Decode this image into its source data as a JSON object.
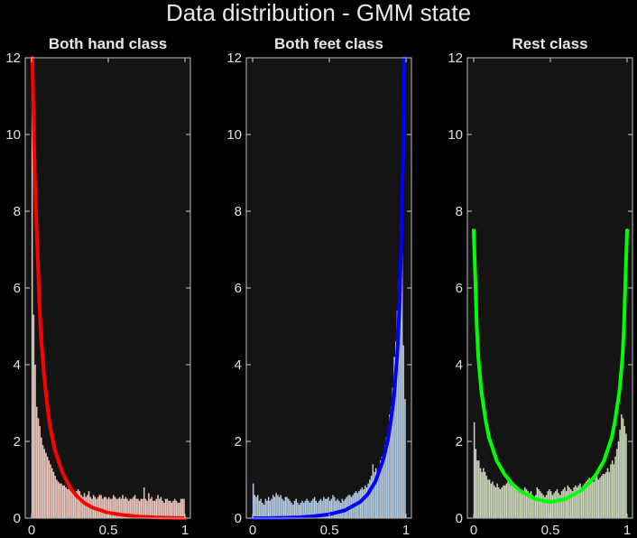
{
  "figure": {
    "title": "Data distribution - GMM state"
  },
  "chart_data": [
    {
      "type": "bar+line",
      "title": "Both hand class",
      "xlim": [
        0,
        1
      ],
      "ylim": [
        0,
        12
      ],
      "xticks": [
        0,
        0.5,
        1
      ],
      "xtick_labels": [
        "0",
        "0.5",
        "1"
      ],
      "yticks": [
        0,
        2,
        4,
        6,
        8,
        10,
        12
      ],
      "ytick_labels": [
        "0",
        "2",
        "4",
        "6",
        "8",
        "10",
        "12"
      ],
      "bar_color": "#f2c4b6",
      "line_color": "#ff0000",
      "bins": 100,
      "histogram": [
        12.0,
        5.3,
        4.0,
        2.9,
        2.6,
        2.4,
        2.1,
        1.9,
        1.8,
        1.7,
        1.6,
        1.5,
        1.4,
        1.3,
        1.2,
        1.1,
        1.0,
        0.95,
        0.9,
        0.9,
        0.85,
        0.85,
        0.8,
        0.75,
        0.8,
        0.75,
        0.7,
        0.7,
        0.65,
        0.7,
        0.75,
        0.7,
        0.6,
        0.55,
        0.65,
        0.55,
        0.6,
        0.7,
        0.55,
        0.5,
        0.6,
        0.55,
        0.5,
        0.55,
        0.6,
        0.6,
        0.5,
        0.55,
        0.55,
        0.5,
        0.55,
        0.5,
        0.5,
        0.6,
        0.55,
        0.5,
        0.5,
        0.55,
        0.5,
        0.6,
        0.5,
        0.55,
        0.5,
        0.45,
        0.5,
        0.5,
        0.55,
        0.6,
        0.5,
        0.5,
        0.45,
        0.5,
        0.5,
        0.8,
        0.5,
        0.45,
        0.65,
        0.5,
        0.55,
        0.45,
        0.45,
        0.5,
        0.6,
        0.5,
        0.55,
        0.45,
        0.4,
        0.5,
        0.5,
        0.45,
        0.45,
        0.4,
        0.45,
        0.5,
        0.45,
        0.4,
        0.4,
        0.5,
        0.5,
        0.5
      ],
      "curve": {
        "x": [
          0.005,
          0.01,
          0.02,
          0.03,
          0.04,
          0.05,
          0.06,
          0.08,
          0.1,
          0.12,
          0.15,
          0.2,
          0.25,
          0.3,
          0.35,
          0.4,
          0.5,
          0.6,
          0.7,
          0.8,
          0.9,
          1.0
        ],
        "y": [
          12.0,
          11.0,
          9.1,
          7.8,
          6.8,
          5.7,
          4.8,
          3.8,
          3.0,
          2.4,
          1.8,
          1.2,
          0.8,
          0.55,
          0.38,
          0.27,
          0.14,
          0.08,
          0.04,
          0.02,
          0.01,
          0.0
        ]
      }
    },
    {
      "type": "bar+line",
      "title": "Both feet class",
      "xlim": [
        0,
        1
      ],
      "ylim": [
        0,
        12
      ],
      "xticks": [
        0,
        0.5,
        1
      ],
      "xtick_labels": [
        "0",
        "0.5",
        "1"
      ],
      "yticks": [
        0,
        2,
        4,
        6,
        8,
        10,
        12
      ],
      "ytick_labels": [
        "0",
        "2",
        "4",
        "6",
        "8",
        "10",
        "12"
      ],
      "bar_color": "#aac8e4",
      "line_color": "#0000ff",
      "bins": 100,
      "histogram": [
        0.9,
        0.6,
        0.55,
        0.6,
        0.45,
        0.5,
        0.4,
        0.35,
        0.5,
        0.45,
        0.55,
        0.45,
        0.5,
        0.6,
        0.55,
        0.65,
        0.6,
        0.55,
        0.6,
        0.5,
        0.45,
        0.55,
        0.55,
        0.5,
        0.45,
        0.4,
        0.35,
        0.45,
        0.5,
        0.4,
        0.35,
        0.4,
        0.45,
        0.4,
        0.45,
        0.5,
        0.45,
        0.4,
        0.45,
        0.5,
        0.55,
        0.45,
        0.4,
        0.45,
        0.5,
        0.45,
        0.55,
        0.5,
        0.5,
        0.55,
        0.45,
        0.5,
        0.6,
        0.55,
        0.45,
        0.5,
        0.45,
        0.4,
        0.5,
        0.45,
        0.5,
        0.55,
        0.6,
        0.6,
        0.55,
        0.6,
        0.65,
        0.7,
        0.65,
        0.7,
        0.75,
        0.8,
        0.75,
        0.85,
        0.8,
        0.9,
        1.0,
        1.1,
        1.4,
        1.2,
        1.3,
        1.0,
        1.3,
        1.5,
        1.6,
        1.7,
        1.9,
        2.1,
        2.3,
        2.7,
        2.9,
        3.4,
        4.2,
        4.6,
        5.4,
        6.2,
        7.6,
        7.9,
        4.5,
        3.1
      ],
      "curve": {
        "x": [
          0.0,
          0.1,
          0.2,
          0.3,
          0.4,
          0.5,
          0.6,
          0.7,
          0.75,
          0.8,
          0.85,
          0.88,
          0.9,
          0.92,
          0.94,
          0.95,
          0.96,
          0.97,
          0.98,
          0.99
        ],
        "y": [
          0.0,
          0.0,
          0.01,
          0.02,
          0.05,
          0.1,
          0.2,
          0.42,
          0.62,
          0.95,
          1.5,
          2.0,
          2.5,
          3.1,
          4.1,
          4.8,
          5.9,
          7.3,
          9.3,
          12.0
        ]
      }
    },
    {
      "type": "bar+line",
      "title": "Rest class",
      "xlim": [
        0,
        1
      ],
      "ylim": [
        0,
        12
      ],
      "xticks": [
        0,
        0.5,
        1
      ],
      "xtick_labels": [
        "0",
        "0.5",
        "1"
      ],
      "yticks": [
        0,
        2,
        4,
        6,
        8,
        10,
        12
      ],
      "ytick_labels": [
        "0",
        "2",
        "4",
        "6",
        "8",
        "10",
        "12"
      ],
      "bar_color": "#c9d8b3",
      "line_color": "#00ff00",
      "bins": 100,
      "histogram": [
        2.5,
        1.8,
        1.5,
        1.5,
        1.3,
        1.2,
        1.3,
        1.2,
        1.1,
        1.0,
        1.0,
        0.9,
        0.95,
        0.85,
        0.8,
        0.9,
        0.8,
        0.75,
        0.8,
        0.85,
        0.85,
        0.9,
        0.95,
        0.9,
        0.85,
        0.9,
        0.8,
        0.8,
        0.75,
        0.7,
        0.7,
        0.65,
        0.7,
        0.8,
        0.75,
        0.7,
        0.65,
        0.7,
        0.6,
        0.55,
        0.6,
        0.8,
        0.75,
        0.7,
        0.65,
        0.6,
        0.55,
        0.6,
        0.7,
        0.75,
        0.7,
        0.6,
        0.65,
        0.7,
        0.75,
        0.65,
        0.6,
        0.7,
        0.75,
        0.8,
        0.7,
        0.85,
        0.8,
        0.75,
        0.7,
        0.8,
        0.85,
        0.8,
        0.85,
        0.9,
        0.8,
        0.85,
        0.9,
        0.95,
        1.0,
        1.05,
        1.0,
        1.0,
        0.95,
        1.05,
        1.1,
        1.0,
        1.05,
        1.1,
        1.15,
        1.15,
        1.2,
        1.3,
        1.2,
        1.4,
        1.5,
        1.4,
        1.6,
        1.8,
        2.0,
        2.3,
        2.7,
        2.6,
        2.4,
        2.2
      ],
      "curve": {
        "x": [
          0.0,
          0.01,
          0.02,
          0.03,
          0.05,
          0.08,
          0.1,
          0.15,
          0.2,
          0.25,
          0.3,
          0.4,
          0.5,
          0.6,
          0.7,
          0.75,
          0.8,
          0.85,
          0.9,
          0.92,
          0.95,
          0.97,
          0.98,
          0.99,
          1.0
        ],
        "y": [
          7.5,
          6.3,
          5.0,
          4.2,
          3.3,
          2.5,
          2.1,
          1.5,
          1.15,
          0.9,
          0.72,
          0.5,
          0.42,
          0.5,
          0.72,
          0.9,
          1.15,
          1.5,
          2.1,
          2.5,
          3.3,
          4.2,
          5.0,
          6.3,
          7.5
        ]
      }
    }
  ]
}
